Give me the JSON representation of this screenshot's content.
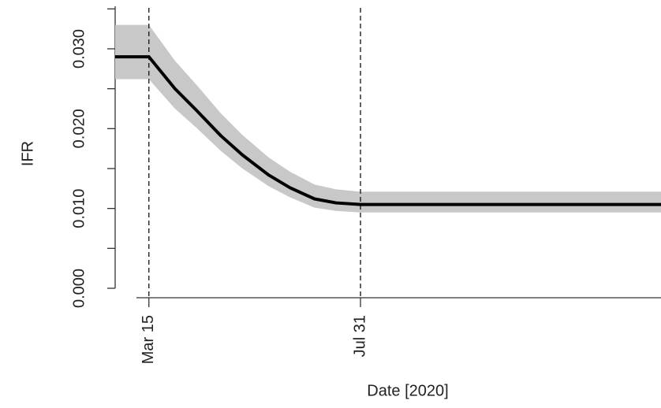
{
  "chart_data": {
    "type": "line",
    "x_label": "Date [2020]",
    "y_label": "IFR",
    "x": [
      "2020-02-22",
      "2020-03-15",
      "2020-04-01",
      "2020-04-15",
      "2020-05-01",
      "2020-05-15",
      "2020-06-01",
      "2020-06-15",
      "2020-07-01",
      "2020-07-15",
      "2020-07-31",
      "2021-02-12"
    ],
    "values": [
      0.029,
      0.029,
      0.025,
      0.0223,
      0.0191,
      0.0167,
      0.0142,
      0.0126,
      0.0112,
      0.0107,
      0.0105,
      0.0105
    ],
    "upper": [
      0.033,
      0.033,
      0.0285,
      0.0255,
      0.0219,
      0.0192,
      0.0164,
      0.0146,
      0.013,
      0.0124,
      0.0121,
      0.0121
    ],
    "lower": [
      0.0262,
      0.0262,
      0.0225,
      0.0201,
      0.0172,
      0.015,
      0.0128,
      0.0114,
      0.0101,
      0.0097,
      0.0095,
      0.0095
    ],
    "color": "#000000",
    "band_color": "#c8c8c8",
    "xlim": [
      "2020-02-22",
      "2021-02-12"
    ],
    "xticks": [
      {
        "value": "2020-03-15",
        "label": "Mar 15"
      },
      {
        "value": "2020-07-31",
        "label": "Jul 31"
      }
    ],
    "vlines": [
      "2020-03-15",
      "2020-07-31"
    ],
    "ylim": [
      0,
      0.035
    ],
    "yticks": [
      {
        "value": 0,
        "label": "0.000"
      },
      {
        "value": 0.01,
        "label": "0.010"
      },
      {
        "value": 0.02,
        "label": "0.020"
      },
      {
        "value": 0.03,
        "label": "0.030"
      }
    ],
    "yminorticks": [
      0.005,
      0.015,
      0.025,
      0.035
    ]
  }
}
